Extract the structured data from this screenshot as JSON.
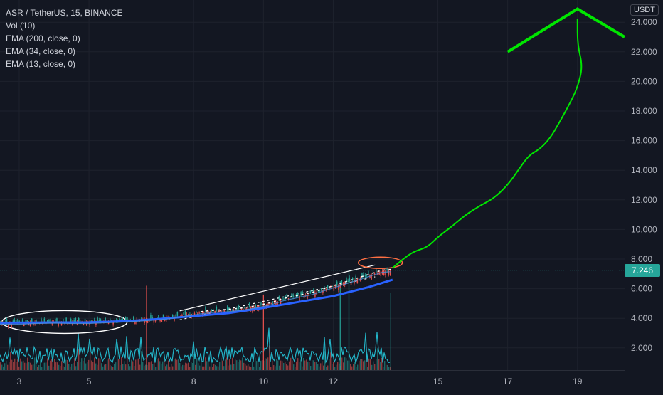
{
  "header": {
    "symbol_line": "ASR / TetherUS, 15, BINANCE",
    "indicators": [
      "Vol (10)",
      "EMA (200, close, 0)",
      "EMA (34, close, 0)",
      "EMA (13, close, 0)"
    ]
  },
  "axis": {
    "currency": "USDT",
    "last_price": "7.246"
  },
  "colors": {
    "background": "#131722",
    "grid": "#1e222d",
    "axis_text": "#b2b5be",
    "ema_200": "#2962ff",
    "ema_34": "#4a90d9",
    "ema_13": "#ffffff",
    "candle_up": "#26a69a",
    "candle_down": "#ef5350",
    "volume_line": "#26c6da",
    "last_price": "#26a69a",
    "projection": "#00e600",
    "annotation_white": "#ffffff",
    "annotation_orange": "#ff7043"
  },
  "chart_data": {
    "type": "candlestick",
    "y_axis": {
      "label": "USDT",
      "range": [
        0.5,
        25.5
      ],
      "ticks": [
        2,
        4,
        6,
        8,
        10,
        12,
        14,
        16,
        18,
        20,
        22,
        24
      ],
      "tick_labels": [
        "2.000",
        "4.000",
        "6.000",
        "8.000",
        "10.000",
        "12.000",
        "14.000",
        "16.000",
        "18.000",
        "20.000",
        "22.000",
        "24.000"
      ]
    },
    "x_axis": {
      "range": [
        2.45,
        20.35
      ],
      "tick_values": [
        3,
        5,
        8,
        10,
        12,
        15,
        17,
        19
      ],
      "tick_labels": [
        "3",
        "5",
        "8",
        "10",
        "12",
        "15",
        "17",
        "19"
      ]
    },
    "grid": true,
    "last_price": 7.246,
    "price_series": [
      [
        2.45,
        3.7
      ],
      [
        3.0,
        3.7
      ],
      [
        3.5,
        3.75
      ],
      [
        4.0,
        3.78
      ],
      [
        4.5,
        3.75
      ],
      [
        5.0,
        3.75
      ],
      [
        5.5,
        3.8
      ],
      [
        6.0,
        3.85
      ],
      [
        6.5,
        3.92
      ],
      [
        7.0,
        4.0
      ],
      [
        7.4,
        4.1
      ],
      [
        7.8,
        4.25
      ],
      [
        8.2,
        4.4
      ],
      [
        8.6,
        4.5
      ],
      [
        9.0,
        4.55
      ],
      [
        9.4,
        4.65
      ],
      [
        9.8,
        4.8
      ],
      [
        10.2,
        5.0
      ],
      [
        10.6,
        5.3
      ],
      [
        11.0,
        5.5
      ],
      [
        11.4,
        5.7
      ],
      [
        11.8,
        6.0
      ],
      [
        12.2,
        6.3
      ],
      [
        12.6,
        6.6
      ],
      [
        13.0,
        6.9
      ],
      [
        13.4,
        7.2
      ],
      [
        13.65,
        7.25
      ]
    ],
    "ema_200": [
      [
        2.45,
        3.7
      ],
      [
        4.0,
        3.72
      ],
      [
        5.0,
        3.73
      ],
      [
        6.0,
        3.8
      ],
      [
        7.0,
        3.95
      ],
      [
        8.0,
        4.15
      ],
      [
        9.0,
        4.35
      ],
      [
        10.0,
        4.7
      ],
      [
        11.0,
        5.1
      ],
      [
        12.0,
        5.5
      ],
      [
        13.0,
        6.1
      ],
      [
        13.7,
        6.6
      ]
    ],
    "volume_spikes": [
      {
        "x": 6.65,
        "y": 6.2,
        "color": "red"
      },
      {
        "x": 10.0,
        "y": 5.6,
        "color": "red"
      },
      {
        "x": 12.2,
        "y": 6.5,
        "color": "green"
      },
      {
        "x": 12.45,
        "y": 7.2,
        "color": "green"
      },
      {
        "x": 13.65,
        "y": 5.7,
        "color": "green"
      }
    ],
    "projection": [
      [
        13.7,
        7.4
      ],
      [
        14.0,
        8.0
      ],
      [
        14.3,
        8.5
      ],
      [
        14.7,
        8.8
      ],
      [
        15.0,
        9.5
      ],
      [
        15.4,
        10.2
      ],
      [
        15.8,
        11.0
      ],
      [
        16.2,
        11.6
      ],
      [
        16.6,
        12.1
      ],
      [
        17.0,
        13.0
      ],
      [
        17.3,
        14.0
      ],
      [
        17.6,
        15.0
      ],
      [
        17.9,
        15.4
      ],
      [
        18.2,
        16.1
      ],
      [
        18.5,
        17.3
      ],
      [
        18.8,
        18.6
      ],
      [
        19.0,
        19.6
      ],
      [
        19.15,
        21.0
      ],
      [
        19.0,
        22.5
      ],
      [
        19.0,
        24.2
      ]
    ],
    "projection_tip": {
      "apex": [
        19.0,
        24.9
      ],
      "left": [
        17.0,
        22.0
      ],
      "right": [
        20.35,
        23.0
      ]
    }
  }
}
